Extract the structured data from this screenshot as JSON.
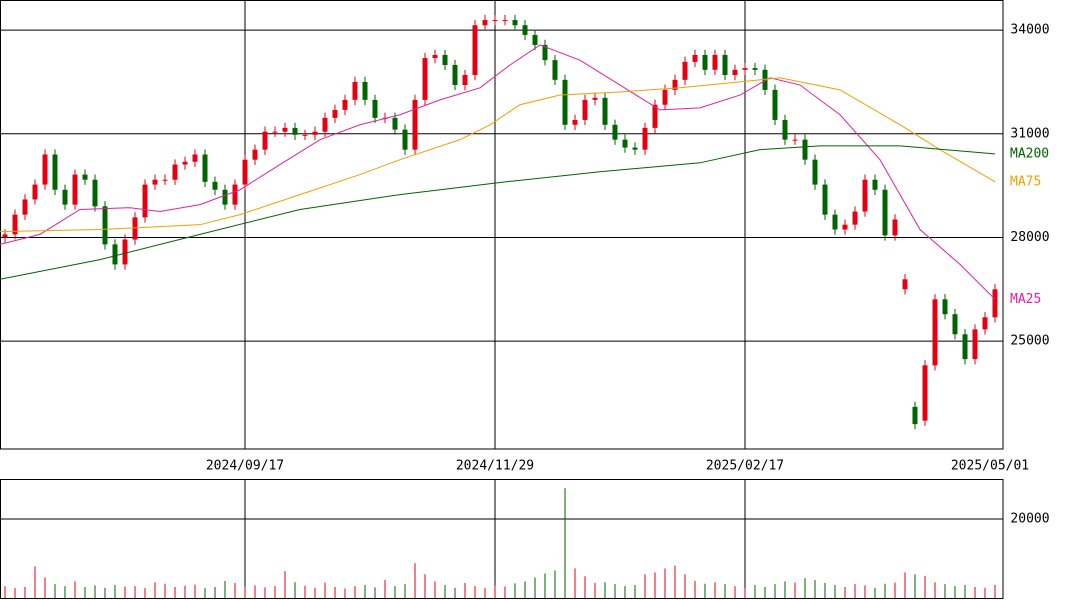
{
  "chart_data": {
    "type": "candlestick",
    "x": [
      0,
      2,
      4,
      6,
      8,
      10,
      12,
      14,
      16,
      18,
      20,
      22,
      24,
      26,
      28,
      30,
      32,
      34,
      36,
      38,
      40,
      42,
      44,
      46,
      48,
      50,
      52,
      54,
      56,
      58,
      60,
      62,
      64,
      66,
      68,
      70,
      72,
      74,
      76,
      78,
      80,
      82,
      84,
      86,
      88,
      90,
      92,
      94,
      96,
      98,
      100,
      102,
      104,
      106,
      108,
      110,
      112,
      114,
      116,
      118,
      120,
      122,
      124,
      126,
      128,
      130,
      132,
      134,
      136,
      138,
      140,
      142,
      144,
      146,
      148,
      150,
      152,
      154,
      156,
      158,
      160,
      162,
      164,
      166,
      168,
      170,
      172,
      174,
      176,
      178,
      180,
      182,
      184,
      186,
      188,
      190,
      192,
      194,
      196,
      198
    ],
    "open": [
      28000,
      28090,
      28660,
      29100,
      29530,
      30400,
      29380,
      28950,
      29820,
      29670,
      28900,
      27800,
      27220,
      27940,
      28580,
      29530,
      29670,
      29670,
      30110,
      30190,
      30400,
      29610,
      29380,
      28950,
      29530,
      30250,
      30540,
      31060,
      31060,
      31170,
      30970,
      30970,
      31060,
      31460,
      31690,
      31980,
      32500,
      31980,
      31460,
      31460,
      31120,
      30540,
      31980,
      33190,
      33280,
      32990,
      32410,
      32700,
      34140,
      34290,
      34290,
      34290,
      34140,
      33860,
      33570,
      33130,
      32560,
      31260,
      31400,
      31980,
      32040,
      31260,
      30830,
      30600,
      30540,
      31170,
      31840,
      32270,
      32560,
      33080,
      33280,
      32850,
      33280,
      32700,
      32850,
      32900,
      32850,
      32270,
      31400,
      30830,
      30830,
      30250,
      29530,
      28660,
      28230,
      28370,
      28750,
      29670,
      29380,
      28060,
      26500,
      23100,
      22700,
      24300,
      26210,
      25780,
      25200,
      24480,
      25340,
      25690
    ],
    "high": [
      28240,
      28810,
      29250,
      29680,
      30550,
      30550,
      29530,
      29970,
      29970,
      29820,
      29050,
      27950,
      28090,
      28730,
      29680,
      29820,
      29820,
      30260,
      30340,
      30550,
      30550,
      29760,
      29530,
      29680,
      30400,
      30690,
      31210,
      31210,
      31320,
      31320,
      31120,
      31210,
      31610,
      31840,
      32130,
      32650,
      32650,
      32130,
      31610,
      31610,
      31270,
      32130,
      33340,
      33430,
      33430,
      33140,
      32850,
      34290,
      34440,
      34440,
      34440,
      34440,
      34290,
      34010,
      33720,
      33280,
      32710,
      31550,
      32130,
      32190,
      32190,
      31410,
      30980,
      30750,
      31320,
      31990,
      32420,
      32710,
      33230,
      33430,
      33430,
      33430,
      33430,
      33000,
      33050,
      33050,
      33000,
      32420,
      31550,
      30980,
      30980,
      30400,
      29680,
      28810,
      28520,
      28900,
      29820,
      29820,
      29530,
      28670,
      26940,
      23250,
      24450,
      26360,
      26360,
      25930,
      25350,
      25490,
      25840,
      26650
    ],
    "low": [
      27850,
      27940,
      28510,
      28950,
      29380,
      29230,
      28800,
      28800,
      29520,
      28750,
      27650,
      27070,
      27070,
      27790,
      28430,
      29380,
      29520,
      29520,
      29960,
      30040,
      29460,
      29230,
      28800,
      28800,
      29380,
      30100,
      30390,
      30910,
      30910,
      30820,
      30820,
      30820,
      30910,
      31310,
      31540,
      31830,
      31830,
      31310,
      31310,
      30970,
      30390,
      30390,
      31830,
      33040,
      32840,
      32260,
      32260,
      32550,
      33990,
      34140,
      34140,
      33990,
      33710,
      33420,
      32980,
      32410,
      31110,
      31110,
      31250,
      31830,
      31110,
      30680,
      30450,
      30390,
      30390,
      31020,
      31690,
      32120,
      32410,
      32930,
      32700,
      32700,
      32550,
      32550,
      32700,
      32700,
      32120,
      31250,
      30680,
      30680,
      30100,
      29380,
      28510,
      28080,
      28080,
      28220,
      28600,
      29230,
      27910,
      27910,
      26350,
      22450,
      22550,
      24150,
      25630,
      25050,
      24330,
      24330,
      25190,
      25540
    ],
    "close": [
      28090,
      28660,
      29100,
      29530,
      30400,
      29380,
      28950,
      29820,
      29670,
      28900,
      27800,
      27220,
      27940,
      28580,
      29530,
      29670,
      29670,
      30110,
      30190,
      30400,
      29610,
      29380,
      28950,
      29530,
      30250,
      30540,
      31060,
      31060,
      31170,
      30970,
      30970,
      31060,
      31460,
      31690,
      31980,
      32500,
      31980,
      31460,
      31460,
      31120,
      30540,
      31980,
      33190,
      33280,
      32990,
      32410,
      32700,
      34140,
      34290,
      34290,
      34290,
      34140,
      33860,
      33570,
      33130,
      32560,
      31260,
      31400,
      31980,
      32040,
      31260,
      30830,
      30600,
      30540,
      31170,
      31840,
      32270,
      32560,
      33080,
      33280,
      32850,
      33280,
      32700,
      32850,
      32900,
      32850,
      32270,
      31400,
      30830,
      30830,
      30250,
      29530,
      28660,
      28230,
      28370,
      28750,
      29670,
      29380,
      28060,
      28520,
      26790,
      22600,
      24300,
      26210,
      25780,
      25200,
      24480,
      25340,
      25690,
      26500
    ],
    "up_color": "#e60012",
    "down_color": "#006400",
    "lines": [
      {
        "name": "MA25",
        "color": "#e020a0",
        "x": [
          -1,
          7,
          15,
          25,
          31,
          39,
          47,
          55,
          63,
          71,
          79,
          87,
          95,
          101,
          107,
          115,
          123,
          131,
          139,
          147,
          153,
          159,
          167,
          175,
          183,
          191,
          198
        ],
        "values": [
          27800,
          28090,
          28810,
          28860,
          28750,
          28950,
          29380,
          30110,
          30830,
          31260,
          31550,
          31980,
          32330,
          32990,
          33570,
          33130,
          32410,
          31690,
          31750,
          32120,
          32620,
          32410,
          31550,
          30250,
          28230,
          27220,
          26210
        ]
      },
      {
        "name": "MA75",
        "color": "#f0a000",
        "x": [
          -1,
          19,
          39,
          47,
          59,
          71,
          79,
          91,
          97,
          103,
          111,
          123,
          135,
          147,
          155,
          167,
          179,
          187,
          198
        ],
        "values": [
          28170,
          28230,
          28370,
          28660,
          29240,
          29820,
          30250,
          30830,
          31260,
          31840,
          32120,
          32210,
          32330,
          32500,
          32620,
          32270,
          31260,
          30540,
          29610
        ]
      },
      {
        "name": "MA200",
        "color": "#006400",
        "x": [
          -1,
          19,
          39,
          59,
          79,
          99,
          119,
          139,
          151,
          163,
          179,
          198
        ],
        "values": [
          26790,
          27360,
          28090,
          28810,
          29240,
          29590,
          29900,
          30160,
          30540,
          30650,
          30650,
          30420
        ]
      }
    ],
    "xlim": [
      -1,
      199.6
    ],
    "ylim": [
      21880,
      34870
    ],
    "yticks": [
      25000,
      28000,
      31000,
      34000
    ],
    "xticks": [
      {
        "value": 48,
        "label": "2024/09/17"
      },
      {
        "value": 98,
        "label": "2024/11/29"
      },
      {
        "value": 148,
        "label": "2025/02/17"
      },
      {
        "value": 199.6,
        "label": "2025/05/01"
      }
    ],
    "volume": {
      "values": [
        3000,
        2500,
        2800,
        8000,
        5200,
        3500,
        3000,
        4200,
        2800,
        3200,
        2600,
        3300,
        2900,
        3000,
        2500,
        4000,
        3600,
        2800,
        3100,
        3400,
        2500,
        2800,
        4300,
        3800,
        2900,
        3200,
        2700,
        3000,
        6800,
        4000,
        3100,
        2600,
        3900,
        2800,
        2400,
        3000,
        3300,
        2700,
        4600,
        3000,
        3500,
        8800,
        6000,
        4200,
        3300,
        2600,
        3800,
        3000,
        2500,
        3200,
        2900,
        3700,
        4200,
        5200,
        6200,
        7000,
        27800,
        7500,
        5500,
        3800,
        4000,
        3500,
        3000,
        3300,
        6000,
        6500,
        7500,
        8200,
        6000,
        4300,
        3600,
        4000,
        3500,
        3000,
        2500,
        3300,
        2800,
        3500,
        4200,
        3900,
        5000,
        4600,
        3800,
        3300,
        2800,
        3500,
        3200,
        2600,
        3600,
        3900,
        6500,
        6000,
        5600,
        4000,
        3500,
        3000,
        3300,
        2800,
        2600,
        3300
      ],
      "ylim": [
        0,
        29870
      ],
      "yticks": [
        20000
      ]
    }
  }
}
